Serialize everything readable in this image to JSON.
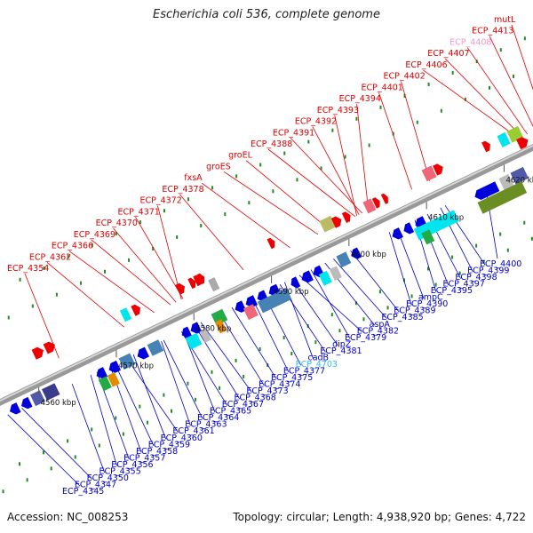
{
  "title": "Escherichia coli 536, complete genome",
  "footer": {
    "accession": "Accession: NC_008253",
    "summary": "Topology: circular; Length: 4,938,920 bp; Genes: 4,722"
  },
  "colors": {
    "upper_label": "#dd0000",
    "lower_label": "#0000c8",
    "highlight_pink": "#f09ad2",
    "highlight_cyan": "#33bbee",
    "backbone": "#999999",
    "tick": "#228b22"
  },
  "kbp_ticks": [
    {
      "kbp": 4560,
      "label": "4560 kbp"
    },
    {
      "kbp": 4570,
      "label": "4570 kbp"
    },
    {
      "kbp": 4580,
      "label": "4580 kbp"
    },
    {
      "kbp": 4590,
      "label": "4590 kbp"
    },
    {
      "kbp": 4600,
      "label": "4600 kbp"
    },
    {
      "kbp": 4610,
      "label": "4610 kbp"
    },
    {
      "kbp": 4620,
      "label": "4620 kbp"
    }
  ],
  "upper_labels": [
    {
      "name": "ECP_4354",
      "kbp": 4562.6
    },
    {
      "name": "ECP_4362",
      "kbp": 4571.0
    },
    {
      "name": "ECP_4366",
      "kbp": 4574.9
    },
    {
      "name": "ECP_4369",
      "kbp": 4577.0
    },
    {
      "name": "ECP_4370",
      "kbp": 4577.7
    },
    {
      "name": "ECP_4371",
      "kbp": 4578.6
    },
    {
      "name": "ECP_4372",
      "kbp": 4578.4
    },
    {
      "name": "ECP_4378",
      "kbp": 4586.4
    },
    {
      "name": "fxsA",
      "kbp": 4592.4
    },
    {
      "name": "groES",
      "kbp": 4596.0
    },
    {
      "name": "groEL",
      "kbp": 4597.4
    },
    {
      "name": "ECP_4388",
      "kbp": 4600.8
    },
    {
      "name": "ECP_4391",
      "kbp": 4601.7
    },
    {
      "name": "ECP_4392",
      "kbp": 4601.3
    },
    {
      "name": "ECP_4393",
      "kbp": 4601.0
    },
    {
      "name": "ECP_4394",
      "kbp": 4602.5
    },
    {
      "name": "ECP_4401",
      "kbp": 4608.1
    },
    {
      "name": "ECP_4402",
      "kbp": 4610.4
    },
    {
      "name": "ECP_4406",
      "kbp": 4621.9
    },
    {
      "name": "ECP_4407",
      "kbp": 4622.3
    },
    {
      "name": "ECP_4408",
      "kbp": 4623.0,
      "highlight": "pink"
    },
    {
      "name": "ECP_4413",
      "kbp": 4624.0
    },
    {
      "name": "mutL",
      "kbp": 4625.3
    }
  ],
  "lower_labels": [
    {
      "name": "ECP_4345",
      "kbp": 4556.0
    },
    {
      "name": "ECP_4347",
      "kbp": 4557.8
    },
    {
      "name": "ECP_4350",
      "kbp": 4564.3
    },
    {
      "name": "ECP_4355",
      "kbp": 4566.7
    },
    {
      "name": "ECP_4356",
      "kbp": 4567.5
    },
    {
      "name": "ECP_4357",
      "kbp": 4569.2
    },
    {
      "name": "ECP_4358",
      "kbp": 4569.8
    },
    {
      "name": "ECP_4359",
      "kbp": 4572.2
    },
    {
      "name": "ECP_4360",
      "kbp": 4571.3
    },
    {
      "name": "ECP_4361",
      "kbp": 4575.8
    },
    {
      "name": "ECP_4363",
      "kbp": 4576.1
    },
    {
      "name": "ECP_4364",
      "kbp": 4578.6
    },
    {
      "name": "ECP_4365",
      "kbp": 4578.4
    },
    {
      "name": "ECP_4367",
      "kbp": 4580.1
    },
    {
      "name": "ECP_4368",
      "kbp": 4580.9
    },
    {
      "name": "ECP_4373",
      "kbp": 4583.3
    },
    {
      "name": "ECP_4374",
      "kbp": 4584.9
    },
    {
      "name": "ECP_4375",
      "kbp": 4587.5
    },
    {
      "name": "ECP_4377",
      "kbp": 4588.9
    },
    {
      "name": "ECP_4703",
      "kbp": 4591.7,
      "highlight": "cyan"
    },
    {
      "name": "cadB",
      "kbp": 4591.1
    },
    {
      "name": "ECP_4381",
      "kbp": 4592.6
    },
    {
      "name": "dipZ",
      "kbp": 4595.1
    },
    {
      "name": "ECP_4379",
      "kbp": 4593.6
    },
    {
      "name": "ECP_4382",
      "kbp": 4596.9
    },
    {
      "name": "aspA",
      "kbp": 4598.0
    },
    {
      "name": "ECP_4385",
      "kbp": 4600.2
    },
    {
      "name": "ECP_4389",
      "kbp": 4605.2
    },
    {
      "name": "ECP_4390",
      "kbp": 4606.2
    },
    {
      "name": "ampC",
      "kbp": 4608.5
    },
    {
      "name": "ECP_4395",
      "kbp": 4609.3
    },
    {
      "name": "ECP_4397",
      "kbp": 4610.1
    },
    {
      "name": "ECP_4398",
      "kbp": 4611.8
    },
    {
      "name": "ECP_4399",
      "kbp": 4612.4
    },
    {
      "name": "ECP_4400",
      "kbp": 4617.6
    }
  ]
}
